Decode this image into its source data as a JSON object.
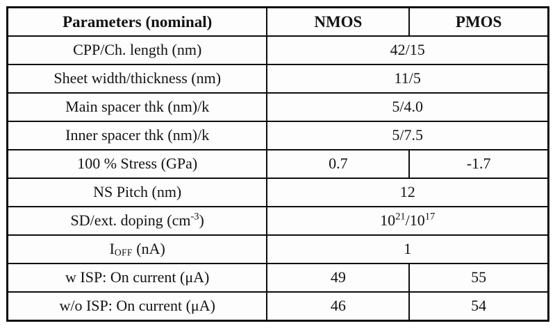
{
  "page": {
    "background_color": "#ffffff",
    "border_color": "#0d0d0d",
    "text_color": "#121212"
  },
  "table": {
    "header": {
      "parameters": "Parameters (nominal)",
      "nmos": "NMOS",
      "pmos": "PMOS"
    },
    "rows": [
      {
        "param": "CPP/Ch. length (nm)",
        "value": "42/15"
      },
      {
        "param": "Sheet width/thickness (nm)",
        "value": "11/5"
      },
      {
        "param": "Main spacer thk (nm)/k",
        "value": "5/4.0"
      },
      {
        "param": "Inner spacer thk (nm)/k",
        "value": "5/7.5"
      },
      {
        "param": "100 % Stress (GPa)",
        "nmos": "0.7",
        "pmos": "-1.7"
      },
      {
        "param": "NS Pitch (nm)",
        "value": "12"
      },
      {
        "param_pre": "SD/ext. doping (cm",
        "param_sup": "-3",
        "param_post": ")",
        "value_base1": "10",
        "value_sup1": "21",
        "value_base2": "/10",
        "value_sup2": "17"
      },
      {
        "param_pre": "I",
        "param_sub": "OFF",
        "param_post": " (nA)",
        "value": "1"
      },
      {
        "param": "w ISP: On current (μA)",
        "nmos": "49",
        "pmos": "55"
      },
      {
        "param": "w/o ISP: On current (μA)",
        "nmos": "46",
        "pmos": "54"
      }
    ]
  }
}
